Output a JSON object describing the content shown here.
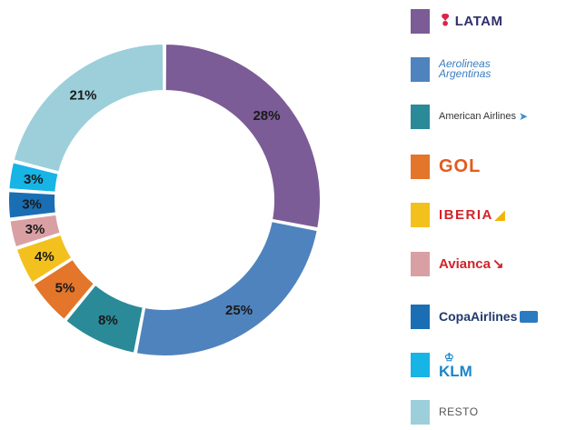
{
  "chart_data": {
    "type": "pie",
    "donut": true,
    "categories": [
      "LATAM",
      "Aerolineas Argentinas",
      "American Airlines",
      "GOL",
      "IBERIA",
      "Avianca",
      "CopaAirlines",
      "KLM",
      "RESTO"
    ],
    "values": [
      28,
      25,
      8,
      5,
      4,
      3,
      3,
      3,
      21
    ],
    "labels": [
      "28%",
      "25%",
      "8%",
      "5%",
      "4%",
      "3%",
      "3%",
      "3%",
      "21%"
    ],
    "colors": [
      "#7b5c96",
      "#4f83be",
      "#2a8a98",
      "#e3762a",
      "#f2c11e",
      "#d9a0a4",
      "#1a6fb4",
      "#17b4e6",
      "#9ccfda"
    ],
    "legend_position": "right"
  },
  "legend": [
    {
      "name": "LATAM",
      "color": "#7b5c96",
      "logo_text": "LATAM",
      "logo_mark": "❢",
      "icon": "latam-logo-icon"
    },
    {
      "name": "Aerolineas Argentinas",
      "color": "#4f83be",
      "logo_text": "Aerolineas",
      "logo_text2": "Argentinas",
      "icon": "aerolineas-argentinas-logo-icon"
    },
    {
      "name": "American Airlines",
      "color": "#2a8a98",
      "logo_text": "American Airlines",
      "logo_mark": "➤",
      "icon": "american-airlines-logo-icon"
    },
    {
      "name": "GOL",
      "color": "#e3762a",
      "logo_text": "GOL",
      "icon": "gol-logo-icon"
    },
    {
      "name": "IBERIA",
      "color": "#f2c11e",
      "logo_text": "IBERIA",
      "logo_mark": "◢",
      "icon": "iberia-logo-icon"
    },
    {
      "name": "Avianca",
      "color": "#d9a0a4",
      "logo_text": "Avianca",
      "logo_mark": "↘",
      "icon": "avianca-logo-icon"
    },
    {
      "name": "CopaAirlines",
      "color": "#1a6fb4",
      "logo_text": "CopaAirlines",
      "icon": "copa-airlines-logo-icon"
    },
    {
      "name": "KLM",
      "color": "#17b4e6",
      "logo_text": "KLM",
      "logo_mark": "♔",
      "icon": "klm-logo-icon"
    },
    {
      "name": "RESTO",
      "color": "#9ccfda",
      "logo_text": "RESTO"
    }
  ]
}
